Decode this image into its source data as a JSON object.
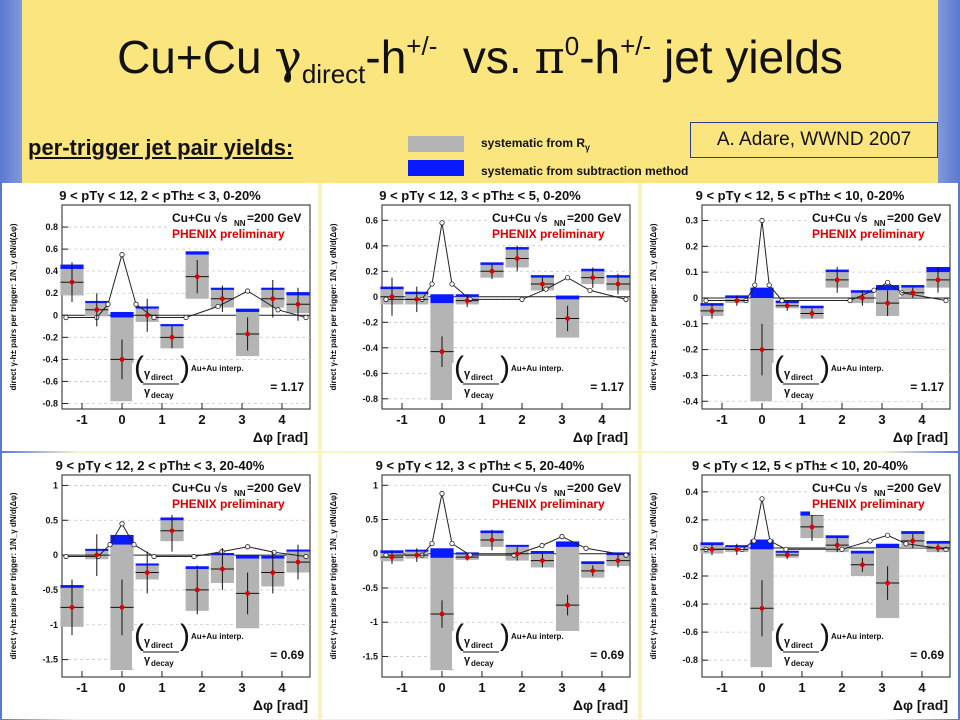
{
  "slide": {
    "title_parts": {
      "a": "Cu+Cu ",
      "gamma": "γ",
      "direct": "direct",
      "dash1": "-h",
      "pm1": "+/-",
      "vs": "  vs. ",
      "pi": "π",
      "zero": "0",
      "dash2": "-h",
      "pm2": "+/-",
      "end": " jet yields"
    },
    "subtitle": "per-trigger jet pair yields:",
    "legend": [
      {
        "label": "systematic from R",
        "label_sub": "γ",
        "color": "#b4b4b4"
      },
      {
        "label": "systematic from subtraction method",
        "color": "#0a1aff"
      }
    ],
    "credit": "A. Adare, WWND 2007",
    "colors": {
      "band": "#fbe57e",
      "frame": "#6a82d6",
      "gray_sys": "#b4b4b4",
      "blue_sys": "#0a1aff",
      "point": "#dd0000"
    }
  },
  "common": {
    "ylabel_main": "direct γ-h",
    "ylabel_sup": "±",
    "ylabel_rest": " pairs per trigger: ",
    "ylabel_frac": "1/N_γ dN/d(Δφ)",
    "xlabel": "Δφ [rad]",
    "system": "Cu+Cu √s",
    "sub_nn": "NN",
    "energy": "=200 GeV",
    "preliminary": "PHENIX preliminary",
    "gamma_direct": "γ",
    "direct_sub": "direct",
    "gamma_decay": "γ",
    "decay_sub": "decay",
    "interp": "Au+Au interp."
  },
  "chart_data": [
    {
      "type": "scatter",
      "header": "9 < pTγ < 12,   2 < pTh± < 3,   0-20%",
      "ratio": "= 1.17",
      "xlabel": "Δφ [rad]",
      "ylim": [
        -0.85,
        1.0
      ],
      "yticks": [
        -0.8,
        -0.6,
        -0.4,
        -0.2,
        0,
        0.2,
        0.4,
        0.6,
        0.8
      ],
      "xticks": [
        -1,
        0,
        1,
        2,
        3,
        4
      ],
      "x": [
        -1.25,
        -0.63,
        0,
        0.63,
        1.25,
        1.88,
        2.51,
        3.14,
        3.77,
        4.4
      ],
      "y": [
        0.3,
        0.05,
        -0.4,
        0.0,
        -0.2,
        0.35,
        0.15,
        -0.17,
        0.15,
        0.1
      ],
      "stat_err": [
        0.18,
        0.15,
        0.18,
        0.15,
        0.1,
        0.15,
        0.12,
        0.15,
        0.17,
        0.15
      ],
      "sys_gray": [
        0.12,
        0.06,
        0.38,
        0.06,
        0.1,
        0.2,
        0.08,
        0.2,
        0.08,
        0.08
      ],
      "sys_blue": [
        0.04,
        0.02,
        0.05,
        0.02,
        0.02,
        0.03,
        0.02,
        0.03,
        0.02,
        0.03
      ],
      "decay_curve": [
        [
          -1.4,
          -0.02
        ],
        [
          -0.63,
          -0.02
        ],
        [
          -0.35,
          0.1
        ],
        [
          0,
          0.55
        ],
        [
          0.35,
          0.1
        ],
        [
          0.8,
          -0.02
        ],
        [
          1.6,
          -0.02
        ],
        [
          2.4,
          0.08
        ],
        [
          3.14,
          0.22
        ],
        [
          3.9,
          0.05
        ],
        [
          4.6,
          -0.02
        ]
      ]
    },
    {
      "type": "scatter",
      "header": "9 < pTγ < 12,   3 < pTh± < 5,   0-20%",
      "ratio": "= 1.17",
      "xlabel": "Δφ [rad]",
      "ylim": [
        -0.88,
        0.72
      ],
      "yticks": [
        -0.8,
        -0.6,
        -0.4,
        -0.2,
        0,
        0.2,
        0.4,
        0.6
      ],
      "xticks": [
        -1,
        0,
        1,
        2,
        3,
        4
      ],
      "x": [
        -1.25,
        -0.63,
        0,
        0.63,
        1.25,
        1.88,
        2.51,
        3.14,
        3.77,
        4.4
      ],
      "y": [
        0.0,
        -0.02,
        -0.43,
        -0.03,
        0.2,
        0.3,
        0.1,
        -0.17,
        0.15,
        0.1
      ],
      "stat_err": [
        0.15,
        0.1,
        0.12,
        0.05,
        0.06,
        0.1,
        0.05,
        0.1,
        0.08,
        0.08
      ],
      "sys_gray": [
        0.06,
        0.04,
        0.38,
        0.03,
        0.05,
        0.07,
        0.05,
        0.15,
        0.05,
        0.05
      ],
      "sys_blue": [
        0.02,
        0.02,
        0.07,
        0.02,
        0.02,
        0.02,
        0.02,
        0.03,
        0.02,
        0.02
      ],
      "decay_curve": [
        [
          -1.4,
          -0.02
        ],
        [
          -0.5,
          -0.02
        ],
        [
          -0.25,
          0.1
        ],
        [
          0,
          0.58
        ],
        [
          0.25,
          0.1
        ],
        [
          0.7,
          -0.02
        ],
        [
          2.0,
          -0.02
        ],
        [
          2.6,
          0.06
        ],
        [
          3.14,
          0.15
        ],
        [
          3.7,
          0.05
        ],
        [
          4.6,
          -0.02
        ]
      ]
    },
    {
      "type": "scatter",
      "header": "9 < pTγ < 12,   5 < pTh± < 10,   0-20%",
      "ratio": "= 1.17",
      "xlabel": "Δφ [rad]",
      "ylim": [
        -0.43,
        0.36
      ],
      "yticks": [
        -0.4,
        -0.3,
        -0.2,
        -0.1,
        0,
        0.1,
        0.2,
        0.3
      ],
      "xticks": [
        -1,
        0,
        1,
        2,
        3,
        4
      ],
      "x": [
        -1.25,
        -0.63,
        0,
        0.63,
        1.25,
        1.88,
        2.51,
        3.14,
        3.77,
        4.4
      ],
      "y": [
        -0.05,
        -0.01,
        -0.2,
        -0.03,
        -0.06,
        0.07,
        0.0,
        -0.02,
        0.02,
        0.07
      ],
      "stat_err": [
        0.03,
        0.02,
        0.1,
        0.02,
        0.02,
        0.05,
        0.03,
        0.05,
        0.02,
        0.05
      ],
      "sys_gray": [
        0.02,
        0.01,
        0.2,
        0.01,
        0.02,
        0.03,
        0.02,
        0.05,
        0.02,
        0.03
      ],
      "sys_blue": [
        0.01,
        0.01,
        0.04,
        0.01,
        0.01,
        0.01,
        0.01,
        0.02,
        0.01,
        0.02
      ],
      "decay_curve": [
        [
          -1.4,
          -0.01
        ],
        [
          -0.4,
          -0.01
        ],
        [
          -0.18,
          0.05
        ],
        [
          0,
          0.3
        ],
        [
          0.18,
          0.05
        ],
        [
          0.5,
          -0.01
        ],
        [
          2.2,
          -0.01
        ],
        [
          2.8,
          0.03
        ],
        [
          3.14,
          0.06
        ],
        [
          3.5,
          0.02
        ],
        [
          4.6,
          -0.01
        ]
      ]
    },
    {
      "type": "scatter",
      "header": "9 < pTγ < 12,   2 < pTh± < 3,   20-40%",
      "ratio": "= 0.69",
      "xlabel": "Δφ [rad]",
      "ylim": [
        -1.75,
        1.15
      ],
      "yticks": [
        -1.5,
        -1,
        -0.5,
        0,
        0.5,
        1
      ],
      "xticks": [
        -1,
        0,
        1,
        2,
        3,
        4
      ],
      "x": [
        -1.25,
        -0.63,
        0,
        0.63,
        1.25,
        1.88,
        2.51,
        3.14,
        3.77,
        4.4
      ],
      "y": [
        -0.75,
        0.0,
        -0.75,
        -0.25,
        0.35,
        -0.5,
        -0.2,
        -0.55,
        -0.25,
        -0.1
      ],
      "stat_err": [
        0.4,
        0.3,
        0.4,
        0.3,
        0.3,
        0.35,
        0.3,
        0.3,
        0.3,
        0.25
      ],
      "sys_gray": [
        0.28,
        0.06,
        0.9,
        0.1,
        0.15,
        0.3,
        0.2,
        0.5,
        0.2,
        0.15
      ],
      "sys_blue": [
        0.04,
        0.03,
        0.14,
        0.03,
        0.04,
        0.04,
        0.03,
        0.05,
        0.04,
        0.03
      ],
      "decay_curve": [
        [
          -1.4,
          -0.02
        ],
        [
          -0.6,
          -0.02
        ],
        [
          -0.3,
          0.15
        ],
        [
          0,
          0.45
        ],
        [
          0.3,
          0.15
        ],
        [
          0.8,
          -0.02
        ],
        [
          1.8,
          -0.02
        ],
        [
          2.5,
          0.05
        ],
        [
          3.14,
          0.12
        ],
        [
          3.8,
          0.04
        ],
        [
          4.6,
          -0.02
        ]
      ]
    },
    {
      "type": "scatter",
      "header": "9 < pTγ < 12,   3 < pTh± < 5,   20-40%",
      "ratio": "= 0.69",
      "xlabel": "Δφ [rad]",
      "ylim": [
        -1.8,
        1.15
      ],
      "yticks": [
        -1.5,
        -1,
        -0.5,
        0,
        0.5,
        1
      ],
      "xticks": [
        -1,
        0,
        1,
        2,
        3,
        4
      ],
      "x": [
        -1.25,
        -0.63,
        0,
        0.63,
        1.25,
        1.88,
        2.51,
        3.14,
        3.77,
        4.4
      ],
      "y": [
        -0.05,
        -0.02,
        -0.88,
        -0.05,
        0.2,
        0.0,
        -0.1,
        -0.75,
        -0.25,
        -0.1
      ],
      "stat_err": [
        0.1,
        0.1,
        0.2,
        0.05,
        0.15,
        0.1,
        0.1,
        0.15,
        0.08,
        0.1
      ],
      "sys_gray": [
        0.06,
        0.05,
        0.82,
        0.04,
        0.1,
        0.1,
        0.1,
        0.85,
        0.1,
        0.08
      ],
      "sys_blue": [
        0.04,
        0.03,
        0.14,
        0.03,
        0.04,
        0.03,
        0.04,
        0.08,
        0.04,
        0.04
      ],
      "decay_curve": [
        [
          -1.4,
          -0.02
        ],
        [
          -0.5,
          -0.02
        ],
        [
          -0.25,
          0.15
        ],
        [
          0,
          0.88
        ],
        [
          0.25,
          0.15
        ],
        [
          0.7,
          -0.02
        ],
        [
          1.8,
          -0.02
        ],
        [
          2.5,
          0.12
        ],
        [
          3.0,
          0.25
        ],
        [
          3.6,
          0.08
        ],
        [
          4.6,
          -0.02
        ]
      ]
    },
    {
      "type": "scatter",
      "header": "9 < pTγ < 12,   5 < pTh± < 10,   20-40%",
      "ratio": "= 0.69",
      "xlabel": "Δφ [rad]",
      "ylim": [
        -0.92,
        0.52
      ],
      "yticks": [
        -0.8,
        -0.6,
        -0.4,
        -0.2,
        0,
        0.2,
        0.4
      ],
      "xticks": [
        -1,
        0,
        1,
        2,
        3,
        4
      ],
      "x": [
        -1.25,
        -0.63,
        0,
        0.63,
        1.25,
        1.88,
        2.51,
        3.14,
        3.77,
        4.4
      ],
      "y": [
        -0.01,
        -0.01,
        -0.43,
        -0.05,
        0.15,
        0.02,
        -0.12,
        -0.25,
        0.05,
        0.0
      ],
      "stat_err": [
        0.04,
        0.04,
        0.2,
        0.03,
        0.1,
        0.05,
        0.05,
        0.12,
        0.05,
        0.03
      ],
      "sys_gray": [
        0.03,
        0.02,
        0.42,
        0.02,
        0.08,
        0.05,
        0.08,
        0.25,
        0.05,
        0.03
      ],
      "sys_blue": [
        0.02,
        0.01,
        0.07,
        0.01,
        0.03,
        0.02,
        0.02,
        0.03,
        0.02,
        0.02
      ],
      "decay_curve": [
        [
          -1.4,
          -0.01
        ],
        [
          -0.5,
          -0.01
        ],
        [
          -0.2,
          0.05
        ],
        [
          0,
          0.35
        ],
        [
          0.2,
          0.05
        ],
        [
          0.6,
          -0.01
        ],
        [
          2.0,
          -0.01
        ],
        [
          2.7,
          0.05
        ],
        [
          3.14,
          0.09
        ],
        [
          3.6,
          0.03
        ],
        [
          4.6,
          -0.01
        ]
      ]
    }
  ]
}
